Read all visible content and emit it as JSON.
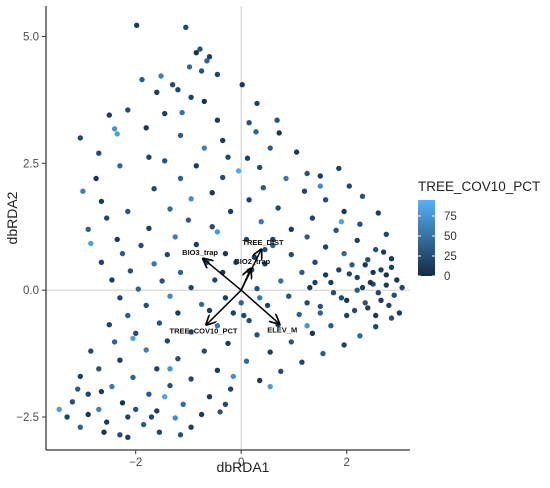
{
  "chart_data": {
    "type": "scatter",
    "title": "",
    "xlabel": "dbRDA1",
    "ylabel": "dbRDA2",
    "xlim": [
      -3.7,
      3.2
    ],
    "ylim": [
      -3.15,
      5.6
    ],
    "x_ticks": [
      -2,
      0,
      2
    ],
    "x_tick_labels": [
      "−2",
      "0",
      "2"
    ],
    "y_ticks": [
      -2.5,
      0.0,
      2.5,
      5.0
    ],
    "y_tick_labels": [
      "−2.5",
      "0.0",
      "2.5",
      "5.0"
    ],
    "reference_lines": {
      "x": 0,
      "y": 0
    },
    "grid": false,
    "color_scale": {
      "variable": "TREE_COV10_PCT",
      "min": 0,
      "max": 95,
      "low_color": "#132b43",
      "high_color": "#56b1f7",
      "ticks": [
        0,
        25,
        50,
        75
      ],
      "tick_labels": [
        "0",
        "25",
        "50",
        "75"
      ],
      "legend_position": "right"
    },
    "vectors": [
      {
        "label": "BIO3_trap",
        "x": -0.72,
        "y": 0.62
      },
      {
        "label": "TREE_DIST",
        "x": 0.38,
        "y": 0.8
      },
      {
        "label": "BIO2_trap",
        "x": 0.18,
        "y": 0.42
      },
      {
        "label": "TREE_COV10_PCT",
        "x": -0.66,
        "y": -0.68
      },
      {
        "label": "ELEV_M",
        "x": 0.72,
        "y": -0.66
      }
    ],
    "points": [
      [
        -1.98,
        5.22,
        12
      ],
      [
        -1.05,
        5.18,
        22
      ],
      [
        -0.78,
        4.75,
        30
      ],
      [
        -0.45,
        4.25,
        18
      ],
      [
        -0.65,
        4.52,
        40
      ],
      [
        -0.85,
        4.68,
        8
      ],
      [
        -0.6,
        4.6,
        15
      ],
      [
        -0.98,
        4.4,
        45
      ],
      [
        -1.52,
        4.22,
        60
      ],
      [
        -1.88,
        4.15,
        35
      ],
      [
        -1.2,
        3.95,
        20
      ],
      [
        0.02,
        4.05,
        10
      ],
      [
        -0.75,
        4.32,
        28
      ],
      [
        -2.15,
        3.55,
        25
      ],
      [
        -1.45,
        3.48,
        15
      ],
      [
        -0.7,
        3.72,
        5
      ],
      [
        -1.12,
        3.5,
        50
      ],
      [
        -0.45,
        3.35,
        12
      ],
      [
        0.3,
        3.68,
        18
      ],
      [
        0.68,
        3.35,
        30
      ],
      [
        -2.4,
        3.18,
        75
      ],
      [
        -2.5,
        3.45,
        12
      ],
      [
        -3.05,
        3.0,
        20
      ],
      [
        -2.35,
        3.08,
        80
      ],
      [
        -1.8,
        3.2,
        10
      ],
      [
        -1.15,
        3.05,
        35
      ],
      [
        0.28,
        3.12,
        40
      ],
      [
        0.72,
        3.1,
        8
      ],
      [
        -2.7,
        2.7,
        25
      ],
      [
        -1.75,
        2.62,
        18
      ],
      [
        -0.7,
        2.8,
        60
      ],
      [
        -0.25,
        2.62,
        22
      ],
      [
        0.12,
        2.6,
        15
      ],
      [
        0.55,
        2.8,
        35
      ],
      [
        1.05,
        2.72,
        10
      ],
      [
        -2.3,
        2.45,
        45
      ],
      [
        -1.45,
        2.55,
        30
      ],
      [
        -0.85,
        2.45,
        12
      ],
      [
        0.35,
        2.42,
        20
      ],
      [
        1.25,
        2.3,
        28
      ],
      [
        1.85,
        2.4,
        15
      ],
      [
        -2.75,
        2.2,
        8
      ],
      [
        -1.15,
        2.2,
        40
      ],
      [
        -0.35,
        2.22,
        25
      ],
      [
        0.85,
        2.2,
        55
      ],
      [
        1.5,
        2.25,
        12
      ],
      [
        2.05,
        2.05,
        18
      ],
      [
        -3.0,
        1.95,
        60
      ],
      [
        -1.65,
        2.0,
        22
      ],
      [
        -0.55,
        1.92,
        10
      ],
      [
        0.42,
        2.02,
        35
      ],
      [
        1.2,
        1.95,
        20
      ],
      [
        2.3,
        1.85,
        30
      ],
      [
        -2.65,
        1.75,
        12
      ],
      [
        -0.95,
        1.8,
        70
      ],
      [
        0.15,
        1.78,
        18
      ],
      [
        1.6,
        1.78,
        25
      ],
      [
        2.6,
        1.52,
        15
      ],
      [
        -2.15,
        1.55,
        30
      ],
      [
        -1.35,
        1.6,
        45
      ],
      [
        -0.2,
        1.55,
        12
      ],
      [
        0.7,
        1.62,
        22
      ],
      [
        1.95,
        1.55,
        8
      ],
      [
        -2.55,
        1.42,
        20
      ],
      [
        -1.0,
        1.38,
        35
      ],
      [
        0.38,
        1.35,
        55
      ],
      [
        1.35,
        1.42,
        18
      ],
      [
        2.25,
        1.3,
        28
      ],
      [
        -2.9,
        1.2,
        40
      ],
      [
        -1.75,
        1.22,
        15
      ],
      [
        -0.55,
        1.25,
        25
      ],
      [
        0.95,
        1.2,
        12
      ],
      [
        1.8,
        1.18,
        30
      ],
      [
        2.75,
        1.1,
        22
      ],
      [
        -2.35,
        1.0,
        10
      ],
      [
        -1.25,
        1.05,
        60
      ],
      [
        0.1,
        1.0,
        20
      ],
      [
        1.25,
        1.05,
        35
      ],
      [
        2.2,
        0.98,
        15
      ],
      [
        -2.85,
        0.92,
        85
      ],
      [
        -1.9,
        0.88,
        25
      ],
      [
        -0.85,
        0.9,
        12
      ],
      [
        0.6,
        0.88,
        40
      ],
      [
        1.6,
        0.85,
        18
      ],
      [
        2.55,
        0.8,
        28
      ],
      [
        -2.25,
        0.72,
        35
      ],
      [
        -1.4,
        0.7,
        20
      ],
      [
        -0.3,
        0.72,
        10
      ],
      [
        0.95,
        0.7,
        25
      ],
      [
        1.95,
        0.72,
        45
      ],
      [
        2.85,
        0.62,
        12
      ],
      [
        -2.65,
        0.55,
        18
      ],
      [
        -1.65,
        0.52,
        55
      ],
      [
        -0.65,
        0.55,
        30
      ],
      [
        0.45,
        0.52,
        15
      ],
      [
        1.4,
        0.55,
        22
      ],
      [
        2.35,
        0.5,
        10
      ],
      [
        -2.1,
        0.38,
        28
      ],
      [
        -1.15,
        0.35,
        40
      ],
      [
        0.15,
        0.38,
        12
      ],
      [
        1.15,
        0.35,
        35
      ],
      [
        2.05,
        0.32,
        20
      ],
      [
        2.75,
        0.3,
        8
      ],
      [
        -2.45,
        0.2,
        15
      ],
      [
        -1.5,
        0.18,
        30
      ],
      [
        -0.5,
        0.2,
        22
      ],
      [
        0.75,
        0.18,
        50
      ],
      [
        1.7,
        0.15,
        12
      ],
      [
        2.5,
        0.12,
        25
      ],
      [
        -1.95,
        0.02,
        40
      ],
      [
        -0.95,
        0.05,
        18
      ],
      [
        0.3,
        0.03,
        28
      ],
      [
        1.3,
        0.05,
        10
      ],
      [
        2.2,
        0.0,
        35
      ],
      [
        -2.3,
        -0.15,
        20
      ],
      [
        -1.35,
        -0.12,
        65
      ],
      [
        -0.3,
        -0.15,
        15
      ],
      [
        0.9,
        -0.12,
        30
      ],
      [
        1.9,
        -0.15,
        22
      ],
      [
        2.65,
        -0.2,
        12
      ],
      [
        -1.8,
        -0.3,
        25
      ],
      [
        -0.75,
        -0.28,
        45
      ],
      [
        0.5,
        -0.3,
        18
      ],
      [
        1.5,
        -0.32,
        28
      ],
      [
        2.4,
        -0.35,
        15
      ],
      [
        -2.15,
        -0.5,
        35
      ],
      [
        -1.2,
        -0.45,
        12
      ],
      [
        0.05,
        -0.5,
        22
      ],
      [
        1.1,
        -0.48,
        40
      ],
      [
        2.0,
        -0.5,
        18
      ],
      [
        2.85,
        -0.55,
        25
      ],
      [
        -2.5,
        -0.68,
        18
      ],
      [
        -1.55,
        -0.65,
        30
      ],
      [
        -0.45,
        -0.7,
        55
      ],
      [
        0.7,
        -0.68,
        12
      ],
      [
        1.7,
        -0.7,
        35
      ],
      [
        2.55,
        -0.72,
        20
      ],
      [
        -2.0,
        -0.85,
        25
      ],
      [
        -0.95,
        -0.82,
        15
      ],
      [
        0.3,
        -0.88,
        28
      ],
      [
        1.35,
        -0.85,
        10
      ],
      [
        2.25,
        -0.9,
        45
      ],
      [
        -2.4,
        -1.02,
        40
      ],
      [
        -1.4,
        -1.0,
        20
      ],
      [
        -0.25,
        -1.05,
        12
      ],
      [
        0.95,
        -1.02,
        30
      ],
      [
        1.95,
        -1.08,
        18
      ],
      [
        -2.85,
        -1.2,
        22
      ],
      [
        -1.8,
        -1.18,
        60
      ],
      [
        -0.7,
        -1.2,
        25
      ],
      [
        0.55,
        -1.22,
        15
      ],
      [
        1.55,
        -1.25,
        35
      ],
      [
        -2.3,
        -1.38,
        12
      ],
      [
        -1.2,
        -1.35,
        28
      ],
      [
        0.1,
        -1.4,
        45
      ],
      [
        1.15,
        -1.42,
        20
      ],
      [
        -2.7,
        -1.55,
        30
      ],
      [
        -1.6,
        -1.55,
        18
      ],
      [
        -0.45,
        -1.58,
        10
      ],
      [
        0.75,
        -1.6,
        25
      ],
      [
        -3.05,
        -1.7,
        15
      ],
      [
        -2.05,
        -1.72,
        40
      ],
      [
        -0.95,
        -1.75,
        22
      ],
      [
        0.35,
        -1.78,
        12
      ],
      [
        -2.45,
        -1.9,
        55
      ],
      [
        -1.35,
        -1.88,
        28
      ],
      [
        -0.2,
        -1.95,
        18
      ],
      [
        -2.9,
        -2.05,
        20
      ],
      [
        -1.75,
        -2.05,
        35
      ],
      [
        -0.6,
        -2.1,
        12
      ],
      [
        -3.2,
        -2.2,
        25
      ],
      [
        -2.25,
        -2.22,
        8
      ],
      [
        -1.1,
        -2.25,
        45
      ],
      [
        -2.7,
        -2.35,
        60
      ],
      [
        -1.6,
        -2.38,
        15
      ],
      [
        -0.4,
        -2.4,
        30
      ],
      [
        -3.3,
        -2.5,
        18
      ],
      [
        -2.15,
        -2.5,
        22
      ],
      [
        -1.25,
        -2.52,
        70
      ],
      [
        -2.55,
        -2.6,
        12
      ],
      [
        -1.85,
        -2.65,
        35
      ],
      [
        -3.05,
        -2.7,
        40
      ],
      [
        -1.55,
        -2.8,
        20
      ],
      [
        -2.3,
        -2.85,
        25
      ],
      [
        -0.95,
        -2.7,
        15
      ],
      [
        -3.45,
        -2.35,
        80
      ],
      [
        -2.9,
        -2.45,
        10
      ],
      [
        -2.0,
        -2.35,
        28
      ],
      [
        -1.45,
        -2.1,
        88
      ],
      [
        -2.65,
        -2.0,
        12
      ],
      [
        2.3,
        0.05,
        15
      ],
      [
        2.45,
        0.15,
        8
      ],
      [
        2.6,
        -0.05,
        20
      ],
      [
        2.75,
        0.1,
        12
      ],
      [
        2.9,
        -0.1,
        25
      ],
      [
        2.2,
        0.25,
        18
      ],
      [
        2.5,
        0.35,
        10
      ],
      [
        2.35,
        -0.25,
        30
      ],
      [
        2.65,
        0.4,
        15
      ],
      [
        2.95,
        0.2,
        8
      ],
      [
        2.8,
        -0.3,
        18
      ],
      [
        3.0,
        -0.45,
        12
      ],
      [
        2.15,
        -0.4,
        22
      ],
      [
        2.55,
        -0.5,
        10
      ],
      [
        2.4,
        0.6,
        28
      ],
      [
        2.7,
        0.75,
        12
      ],
      [
        2.1,
        0.5,
        35
      ],
      [
        2.85,
        0.45,
        15
      ],
      [
        3.05,
        0.05,
        20
      ],
      [
        2.0,
        -0.2,
        8
      ],
      [
        1.85,
        0.4,
        18
      ],
      [
        1.75,
        -0.05,
        25
      ],
      [
        1.6,
        0.3,
        12
      ],
      [
        1.5,
        -0.45,
        40
      ],
      [
        1.4,
        0.15,
        15
      ],
      [
        1.25,
        -0.25,
        22
      ],
      [
        0.2,
        0.4,
        18
      ],
      [
        0.25,
        0.65,
        12
      ],
      [
        0.45,
        0.8,
        25
      ],
      [
        0.6,
        1.0,
        15
      ],
      [
        -0.1,
        0.55,
        30
      ],
      [
        -0.35,
        0.35,
        10
      ],
      [
        0.0,
        -0.25,
        40
      ],
      [
        -0.15,
        -0.45,
        18
      ],
      [
        0.15,
        -0.6,
        25
      ],
      [
        -0.6,
        -0.4,
        12
      ],
      [
        0.35,
        -0.15,
        55
      ],
      [
        -1.6,
        3.9,
        12
      ],
      [
        -1.3,
        4.05,
        25
      ],
      [
        -0.95,
        3.8,
        18
      ],
      [
        0.15,
        3.3,
        30
      ],
      [
        -0.35,
        2.95,
        12
      ],
      [
        1.5,
        2.05,
        70
      ],
      [
        -0.45,
        1.15,
        78
      ],
      [
        -2.05,
        -0.95,
        82
      ],
      [
        -0.15,
        -1.7,
        72
      ],
      [
        1.25,
        -0.7,
        76
      ],
      [
        0.55,
        -1.9,
        80
      ],
      [
        -1.35,
        -1.55,
        74
      ],
      [
        1.9,
        1.35,
        86
      ],
      [
        -0.05,
        2.35,
        90
      ],
      [
        -2.6,
        -2.8,
        8
      ],
      [
        -3.1,
        -1.95,
        35
      ],
      [
        -2.15,
        -2.9,
        15
      ],
      [
        -1.7,
        -2.5,
        20
      ],
      [
        -1.15,
        -2.85,
        30
      ],
      [
        -0.75,
        -2.45,
        12
      ],
      [
        -0.3,
        -2.25,
        22
      ]
    ]
  }
}
